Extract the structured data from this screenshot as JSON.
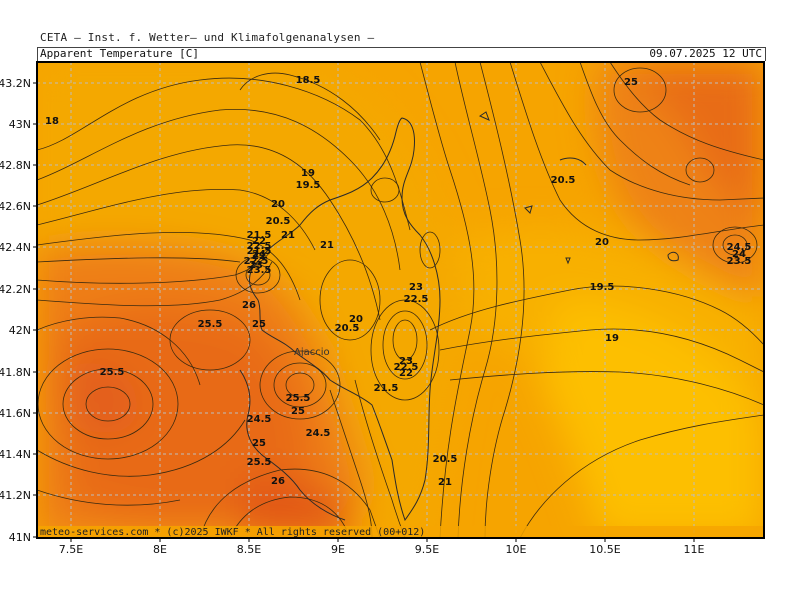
{
  "header": {
    "institute": "CETA — Inst. f. Wetter— und Klimafolgenanalysen —",
    "title": "Apparent Temperature [C]",
    "datetime": "09.07.2025 12 UTC"
  },
  "footer": {
    "copyright": "meteo-services.com * (c)2025 IWKF * All rights reserved (00+012)"
  },
  "axes": {
    "lon_labels": [
      "7.5E",
      "8E",
      "8.5E",
      "9E",
      "9.5E",
      "10E",
      "10.5E",
      "11E"
    ],
    "lat_labels": [
      "41N",
      "41.2N",
      "41.4N",
      "41.6N",
      "41.8N",
      "42N",
      "42.2N",
      "42.4N",
      "42.6N",
      "42.8N",
      "43N",
      "43.2N"
    ]
  },
  "places": [
    {
      "name": "Ajaccio"
    }
  ],
  "colors": {
    "frame": "#000000",
    "coast": "#333333",
    "contour": "#3a2a10",
    "grid": "#bbbbbb"
  },
  "contour_labels": [
    {
      "value": "18.5"
    },
    {
      "value": "18"
    },
    {
      "value": "19"
    },
    {
      "value": "19.5"
    },
    {
      "value": "20"
    },
    {
      "value": "20.5"
    },
    {
      "value": "21"
    },
    {
      "value": "21.5"
    },
    {
      "value": "22"
    },
    {
      "value": "22.5"
    },
    {
      "value": "21.5"
    },
    {
      "value": "22"
    },
    {
      "value": "22.5"
    },
    {
      "value": "23"
    },
    {
      "value": "23.5"
    },
    {
      "value": "24"
    },
    {
      "value": "26"
    },
    {
      "value": "25.5"
    },
    {
      "value": "25"
    },
    {
      "value": "21"
    },
    {
      "value": "23"
    },
    {
      "value": "22.5"
    },
    {
      "value": "20"
    },
    {
      "value": "20.5"
    },
    {
      "value": "23"
    },
    {
      "value": "22.5"
    },
    {
      "value": "22"
    },
    {
      "value": "21.5"
    },
    {
      "value": "25.5"
    },
    {
      "value": "25.5"
    },
    {
      "value": "25"
    },
    {
      "value": "24.5"
    },
    {
      "value": "24.5"
    },
    {
      "value": "25"
    },
    {
      "value": "25.5"
    },
    {
      "value": "26"
    },
    {
      "value": "20.5"
    },
    {
      "value": "21"
    },
    {
      "value": "20.5"
    },
    {
      "value": "20"
    },
    {
      "value": "19.5"
    },
    {
      "value": "19"
    },
    {
      "value": "25"
    },
    {
      "value": "24.5"
    },
    {
      "value": "24"
    },
    {
      "value": "23.5"
    }
  ]
}
